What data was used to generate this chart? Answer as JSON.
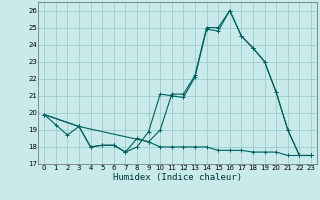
{
  "xlabel": "Humidex (Indice chaleur)",
  "background_color": "#c8eaea",
  "grid_color": "#a0cccc",
  "line_color": "#006060",
  "xlim": [
    -0.5,
    23.5
  ],
  "ylim": [
    17,
    26.5
  ],
  "yticks": [
    17,
    18,
    19,
    20,
    21,
    22,
    23,
    24,
    25,
    26
  ],
  "xticks": [
    0,
    1,
    2,
    3,
    4,
    5,
    6,
    7,
    8,
    9,
    10,
    11,
    12,
    13,
    14,
    15,
    16,
    17,
    18,
    19,
    20,
    21,
    22,
    23
  ],
  "line1_x": [
    0,
    1,
    2,
    3,
    4,
    5,
    6,
    7,
    8,
    9,
    10,
    11,
    12,
    13,
    14,
    15,
    16,
    17,
    18,
    19,
    20,
    21,
    22,
    23
  ],
  "line1_y": [
    19.9,
    19.3,
    18.7,
    19.2,
    18.0,
    18.1,
    18.1,
    17.7,
    18.0,
    18.9,
    21.1,
    21.0,
    20.9,
    22.1,
    24.9,
    24.8,
    26.0,
    24.5,
    23.8,
    23.0,
    21.2,
    19.0,
    17.5,
    17.5
  ],
  "line2_x": [
    0,
    3,
    9,
    10,
    11,
    12,
    13,
    14,
    15,
    16,
    17,
    18,
    19,
    20,
    21,
    22,
    23
  ],
  "line2_y": [
    19.9,
    19.2,
    18.3,
    19.0,
    21.1,
    21.1,
    22.2,
    25.0,
    25.0,
    26.0,
    24.5,
    23.8,
    23.0,
    21.2,
    19.0,
    17.5,
    17.5
  ],
  "line3_x": [
    0,
    3,
    4,
    5,
    6,
    7,
    8,
    9,
    10,
    11,
    12,
    13,
    14,
    15,
    16,
    17,
    18,
    19,
    20,
    21,
    22,
    23
  ],
  "line3_y": [
    19.9,
    19.2,
    18.0,
    18.1,
    18.1,
    17.7,
    18.5,
    18.3,
    18.0,
    18.0,
    18.0,
    18.0,
    18.0,
    17.8,
    17.8,
    17.8,
    17.7,
    17.7,
    17.7,
    17.5,
    17.5,
    17.5
  ]
}
